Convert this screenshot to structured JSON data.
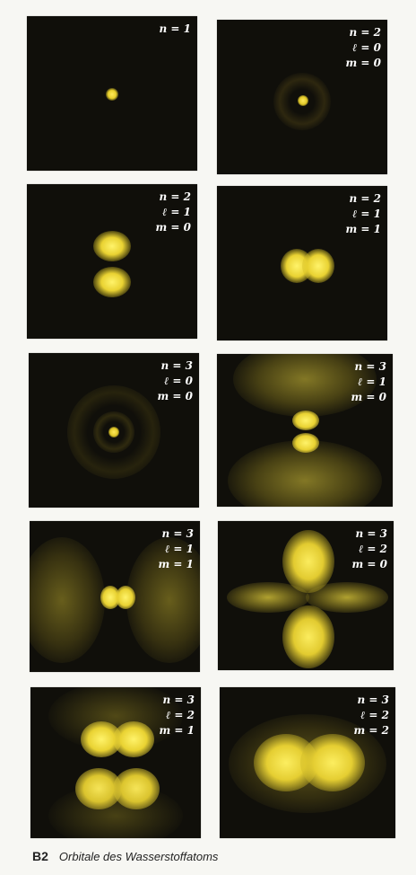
{
  "panels": [
    {
      "labels": [
        "n = 1"
      ]
    },
    {
      "labels": [
        "n = 2",
        "ℓ = 0",
        "m = 0"
      ]
    },
    {
      "labels": [
        "n = 2",
        "ℓ = 1",
        "m = 0"
      ]
    },
    {
      "labels": [
        "n = 2",
        "ℓ = 1",
        "m = 1"
      ]
    },
    {
      "labels": [
        "n = 3",
        "ℓ = 0",
        "m = 0"
      ]
    },
    {
      "labels": [
        "n = 3",
        "ℓ = 1",
        "m = 0"
      ]
    },
    {
      "labels": [
        "n = 3",
        "ℓ = 1",
        "m = 1"
      ]
    },
    {
      "labels": [
        "n = 3",
        "ℓ = 2",
        "m = 0"
      ]
    },
    {
      "labels": [
        "n = 3",
        "ℓ = 2",
        "m = 1"
      ]
    },
    {
      "labels": [
        "n = 3",
        "ℓ = 2",
        "m = 2"
      ]
    }
  ],
  "caption": {
    "tag": "B2",
    "text": "Orbitale des Wasserstoffatoms"
  },
  "colors": {
    "glow": "#f2e84a",
    "panel": "#100f0a"
  }
}
